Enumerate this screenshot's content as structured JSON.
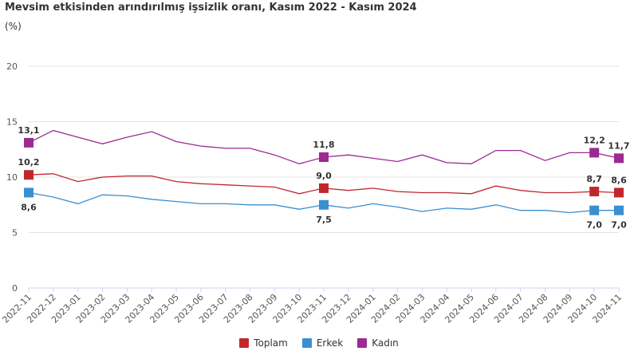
{
  "title": "Mevsim etkisinden arındırılmış işsizlik oranı, Kasım 2022 - Kasım 2024",
  "unit": "(%)",
  "chart_data": {
    "type": "line",
    "title": "Mevsim etkisinden arındırılmış işsizlik oranı, Kasım 2022 - Kasım 2024",
    "ylabel": "(%)",
    "ylim": [
      0,
      20
    ],
    "yticks": [
      0,
      5,
      10,
      15,
      20
    ],
    "grid": true,
    "legend_position": "bottom-center",
    "categories": [
      "2022-11",
      "2022-12",
      "2023-01",
      "2023-02",
      "2023-03",
      "2023-04",
      "2023-05",
      "2023-06",
      "2023-07",
      "2023-08",
      "2023-09",
      "2023-10",
      "2023-11",
      "2023-12",
      "2024-01",
      "2024-02",
      "2024-03",
      "2024-04",
      "2024-05",
      "2024-06",
      "2024-07",
      "2024-08",
      "2024-09",
      "2024-10",
      "2024-11"
    ],
    "series": [
      {
        "name": "Toplam",
        "color": "#c0272d",
        "values": [
          10.2,
          10.3,
          9.6,
          10.0,
          10.1,
          10.1,
          9.6,
          9.4,
          9.3,
          9.2,
          9.1,
          8.5,
          9.0,
          8.8,
          9.0,
          8.7,
          8.6,
          8.6,
          8.5,
          9.2,
          8.8,
          8.6,
          8.6,
          8.7,
          8.6
        ]
      },
      {
        "name": "Erkek",
        "color": "#3a8fd1",
        "values": [
          8.6,
          8.2,
          7.6,
          8.4,
          8.3,
          8.0,
          7.8,
          7.6,
          7.6,
          7.5,
          7.5,
          7.1,
          7.5,
          7.2,
          7.6,
          7.3,
          6.9,
          7.2,
          7.1,
          7.5,
          7.0,
          7.0,
          6.8,
          7.0,
          7.0
        ]
      },
      {
        "name": "Kadın",
        "color": "#9b2a92",
        "values": [
          13.1,
          14.2,
          13.6,
          13.0,
          13.6,
          14.1,
          13.2,
          12.8,
          12.6,
          12.6,
          12.0,
          11.2,
          11.8,
          12.0,
          11.7,
          11.4,
          12.0,
          11.3,
          11.2,
          12.4,
          12.4,
          11.5,
          12.2,
          12.2,
          11.7
        ]
      }
    ],
    "data_labels": [
      {
        "series": 2,
        "index": 0,
        "text": "13,1"
      },
      {
        "series": 0,
        "index": 0,
        "text": "10,2"
      },
      {
        "series": 1,
        "index": 0,
        "text": "8,6"
      },
      {
        "series": 2,
        "index": 12,
        "text": "11,8"
      },
      {
        "series": 0,
        "index": 12,
        "text": "9,0"
      },
      {
        "series": 1,
        "index": 12,
        "text": "7,5"
      },
      {
        "series": 2,
        "index": 23,
        "text": "12,2"
      },
      {
        "series": 0,
        "index": 23,
        "text": "8,7"
      },
      {
        "series": 1,
        "index": 23,
        "text": "7,0"
      },
      {
        "series": 2,
        "index": 24,
        "text": "11,7"
      },
      {
        "series": 0,
        "index": 24,
        "text": "8,6"
      },
      {
        "series": 1,
        "index": 24,
        "text": "7,0"
      }
    ]
  }
}
